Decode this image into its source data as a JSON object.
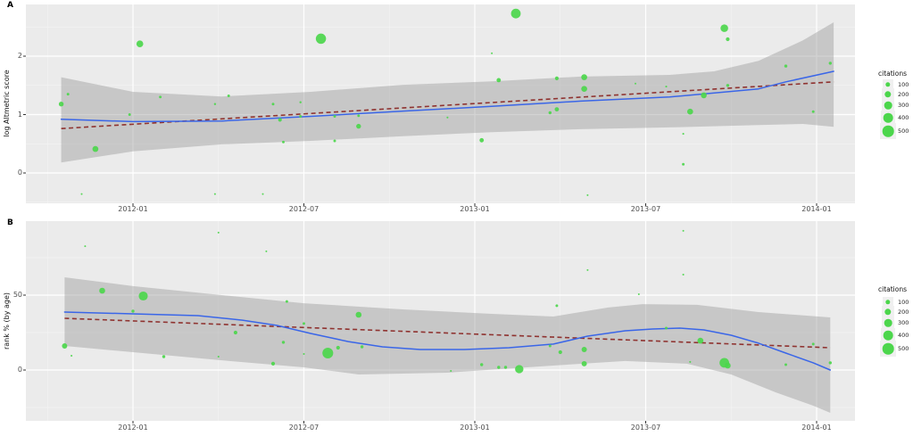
{
  "colors": {
    "point_green": "#4CD64C",
    "smooth_blue": "#3A66E8",
    "trend_red": "#8F3330",
    "band_gray": "#969696",
    "panel_bg": "#EBEBEB",
    "grid_major": "#FFFFFF",
    "grid_minor": "#F7F7F7",
    "tick_mark": "#333333",
    "tick_text": "#4D4D4D"
  },
  "chart_data": [
    {
      "panel_label": "A",
      "type": "scatter",
      "ylabel": "log Altmetric score",
      "x_tick_labels": [
        "2012-01",
        "2012-07",
        "2013-01",
        "2013-07",
        "2014-01"
      ],
      "x_tick_dates": [
        2012.0,
        2012.5,
        2013.0,
        2013.5,
        2014.0
      ],
      "x_minor_dates": [
        2011.75,
        2012.25,
        2012.75,
        2013.25,
        2013.75
      ],
      "xlim": [
        2011.69,
        2014.11
      ],
      "y_tick_labels": [
        "0",
        "1",
        "2"
      ],
      "y_tick_values": [
        0,
        1,
        2
      ],
      "y_minor_values": [
        -0.5,
        0.5,
        1.5,
        2.5
      ],
      "ylim": [
        -0.52,
        2.89
      ],
      "legend": {
        "title": "citations",
        "size_labels": [
          "100",
          "200",
          "300",
          "400",
          "500"
        ]
      },
      "points": [
        [
          2011.81,
          1.35,
          30
        ],
        [
          2011.79,
          1.18,
          100
        ],
        [
          2012.02,
          2.21,
          200
        ],
        [
          2012.08,
          1.3,
          30
        ],
        [
          2012.24,
          1.18,
          20
        ],
        [
          2012.28,
          1.32,
          30
        ],
        [
          2012.41,
          1.18,
          30
        ],
        [
          2012.49,
          1.21,
          20
        ],
        [
          2012.55,
          2.3,
          450
        ],
        [
          2011.99,
          1.0,
          30
        ],
        [
          2011.89,
          0.41,
          150
        ],
        [
          2012.43,
          0.91,
          60
        ],
        [
          2012.49,
          0.97,
          30
        ],
        [
          2012.59,
          0.97,
          30
        ],
        [
          2012.66,
          0.98,
          30
        ],
        [
          2012.66,
          0.8,
          100
        ],
        [
          2012.59,
          0.55,
          30
        ],
        [
          2012.44,
          0.53,
          30
        ],
        [
          2011.85,
          -0.36,
          10
        ],
        [
          2012.24,
          -0.36,
          10
        ],
        [
          2012.38,
          -0.36,
          10
        ],
        [
          2013.12,
          2.73,
          400
        ],
        [
          2013.73,
          2.48,
          250
        ],
        [
          2013.74,
          2.29,
          60
        ],
        [
          2013.05,
          2.05,
          10
        ],
        [
          2013.07,
          1.59,
          80
        ],
        [
          2013.24,
          1.62,
          60
        ],
        [
          2013.32,
          1.64,
          150
        ],
        [
          2013.32,
          1.44,
          150
        ],
        [
          2013.47,
          1.53,
          10
        ],
        [
          2013.56,
          1.48,
          15
        ],
        [
          2013.67,
          1.33,
          150
        ],
        [
          2013.74,
          1.5,
          40
        ],
        [
          2013.91,
          1.83,
          40
        ],
        [
          2014.04,
          1.88,
          40
        ],
        [
          2012.92,
          0.95,
          15
        ],
        [
          2013.22,
          1.03,
          40
        ],
        [
          2013.24,
          1.09,
          80
        ],
        [
          2013.02,
          0.56,
          80
        ],
        [
          2013.63,
          1.05,
          150
        ],
        [
          2013.61,
          0.67,
          15
        ],
        [
          2013.61,
          0.15,
          30
        ],
        [
          2013.33,
          -0.38,
          10
        ],
        [
          2013.99,
          1.05,
          30
        ]
      ],
      "smooth": [
        [
          2011.79,
          0.92
        ],
        [
          2012.0,
          0.88
        ],
        [
          2012.26,
          0.89
        ],
        [
          2012.52,
          0.97
        ],
        [
          2012.79,
          1.06
        ],
        [
          2013.05,
          1.14
        ],
        [
          2013.31,
          1.23
        ],
        [
          2013.57,
          1.3
        ],
        [
          2013.83,
          1.44
        ],
        [
          2013.91,
          1.56
        ],
        [
          2014.05,
          1.74
        ]
      ],
      "trend": [
        [
          2011.79,
          0.76
        ],
        [
          2014.05,
          1.56
        ]
      ],
      "band_upper": [
        [
          2011.79,
          1.64
        ],
        [
          2012.0,
          1.39
        ],
        [
          2012.26,
          1.31
        ],
        [
          2012.52,
          1.39
        ],
        [
          2012.79,
          1.51
        ],
        [
          2013.05,
          1.57
        ],
        [
          2013.31,
          1.65
        ],
        [
          2013.57,
          1.68
        ],
        [
          2013.7,
          1.74
        ],
        [
          2013.83,
          1.92
        ],
        [
          2013.96,
          2.27
        ],
        [
          2014.05,
          2.58
        ]
      ],
      "band_lower": [
        [
          2011.79,
          0.18
        ],
        [
          2012.0,
          0.37
        ],
        [
          2012.26,
          0.49
        ],
        [
          2012.52,
          0.55
        ],
        [
          2012.79,
          0.63
        ],
        [
          2013.05,
          0.7
        ],
        [
          2013.31,
          0.75
        ],
        [
          2013.57,
          0.78
        ],
        [
          2013.83,
          0.82
        ],
        [
          2013.96,
          0.84
        ],
        [
          2014.05,
          0.79
        ]
      ]
    },
    {
      "panel_label": "B",
      "type": "scatter",
      "ylabel": "rank % (by age)",
      "x_tick_labels": [
        "2012-01",
        "2012-07",
        "2013-01",
        "2013-07",
        "2014-01"
      ],
      "x_tick_dates": [
        2012.0,
        2012.5,
        2013.0,
        2013.5,
        2014.0
      ],
      "x_minor_dates": [
        2011.75,
        2012.25,
        2012.75,
        2013.25,
        2013.75
      ],
      "xlim": [
        2011.69,
        2014.11
      ],
      "y_tick_labels": [
        "0",
        "50"
      ],
      "y_tick_values": [
        0,
        50
      ],
      "y_minor_values": [
        -25,
        25,
        75
      ],
      "ylim": [
        -34.5,
        99.4
      ],
      "legend": {
        "title": "citations",
        "size_labels": [
          "100",
          "200",
          "300",
          "400",
          "500"
        ]
      },
      "points": [
        [
          2011.86,
          82.7,
          10
        ],
        [
          2011.91,
          53.0,
          150
        ],
        [
          2012.03,
          49.4,
          350
        ],
        [
          2012.0,
          39.3,
          40
        ],
        [
          2011.8,
          16.1,
          120
        ],
        [
          2011.82,
          9.5,
          15
        ],
        [
          2012.09,
          8.9,
          40
        ],
        [
          2012.25,
          91.7,
          10
        ],
        [
          2012.39,
          79.2,
          10
        ],
        [
          2012.45,
          45.8,
          30
        ],
        [
          2012.3,
          25.0,
          60
        ],
        [
          2012.25,
          8.9,
          15
        ],
        [
          2012.41,
          4.2,
          60
        ],
        [
          2012.44,
          18.5,
          40
        ],
        [
          2012.5,
          31.0,
          30
        ],
        [
          2012.5,
          10.7,
          15
        ],
        [
          2012.57,
          11.3,
          500
        ],
        [
          2012.6,
          14.9,
          60
        ],
        [
          2012.66,
          36.9,
          150
        ],
        [
          2012.67,
          15.5,
          40
        ],
        [
          2012.93,
          -0.6,
          10
        ],
        [
          2013.02,
          3.6,
          40
        ],
        [
          2013.07,
          1.8,
          40
        ],
        [
          2013.09,
          1.8,
          40
        ],
        [
          2013.13,
          0.6,
          300
        ],
        [
          2013.22,
          16.1,
          30
        ],
        [
          2013.61,
          92.9,
          10
        ],
        [
          2013.33,
          66.7,
          10
        ],
        [
          2013.61,
          63.7,
          15
        ],
        [
          2013.48,
          50.6,
          10
        ],
        [
          2013.24,
          42.9,
          30
        ],
        [
          2013.25,
          11.9,
          60
        ],
        [
          2013.32,
          13.7,
          120
        ],
        [
          2013.32,
          4.2,
          120
        ],
        [
          2013.56,
          28.0,
          30
        ],
        [
          2013.66,
          19.6,
          150
        ],
        [
          2013.63,
          5.4,
          15
        ],
        [
          2013.73,
          4.8,
          400
        ],
        [
          2013.74,
          3.0,
          150
        ],
        [
          2013.91,
          3.6,
          30
        ],
        [
          2013.99,
          17.3,
          30
        ],
        [
          2014.04,
          4.8,
          40
        ]
      ],
      "smooth": [
        [
          2011.8,
          38.7
        ],
        [
          2012.0,
          37.5
        ],
        [
          2012.19,
          36.3
        ],
        [
          2012.32,
          33.3
        ],
        [
          2012.42,
          29.8
        ],
        [
          2012.52,
          24.4
        ],
        [
          2012.63,
          19.0
        ],
        [
          2012.73,
          15.5
        ],
        [
          2012.84,
          13.7
        ],
        [
          2012.97,
          13.7
        ],
        [
          2013.1,
          14.9
        ],
        [
          2013.23,
          17.3
        ],
        [
          2013.33,
          22.6
        ],
        [
          2013.44,
          26.2
        ],
        [
          2013.52,
          27.4
        ],
        [
          2013.6,
          28.0
        ],
        [
          2013.67,
          26.8
        ],
        [
          2013.75,
          23.2
        ],
        [
          2013.83,
          17.9
        ],
        [
          2013.91,
          11.3
        ],
        [
          2013.99,
          4.8
        ],
        [
          2014.04,
          0.0
        ]
      ],
      "trend": [
        [
          2011.8,
          34.5
        ],
        [
          2014.04,
          14.9
        ]
      ],
      "band_upper": [
        [
          2011.8,
          61.9
        ],
        [
          2012.0,
          56.0
        ],
        [
          2012.26,
          50.0
        ],
        [
          2012.5,
          44.6
        ],
        [
          2012.79,
          40.5
        ],
        [
          2013.05,
          37.5
        ],
        [
          2013.23,
          35.7
        ],
        [
          2013.39,
          41.7
        ],
        [
          2013.49,
          44.0
        ],
        [
          2013.65,
          43.5
        ],
        [
          2013.83,
          38.7
        ],
        [
          2014.04,
          35.1
        ]
      ],
      "band_lower": [
        [
          2011.8,
          16.1
        ],
        [
          2012.0,
          11.9
        ],
        [
          2012.26,
          6.5
        ],
        [
          2012.5,
          1.8
        ],
        [
          2012.66,
          -3.0
        ],
        [
          2012.92,
          -1.8
        ],
        [
          2013.23,
          3.0
        ],
        [
          2013.44,
          6.0
        ],
        [
          2013.62,
          4.2
        ],
        [
          2013.75,
          -3.0
        ],
        [
          2013.88,
          -14.9
        ],
        [
          2013.99,
          -23.8
        ],
        [
          2014.04,
          -28.6
        ]
      ]
    }
  ]
}
